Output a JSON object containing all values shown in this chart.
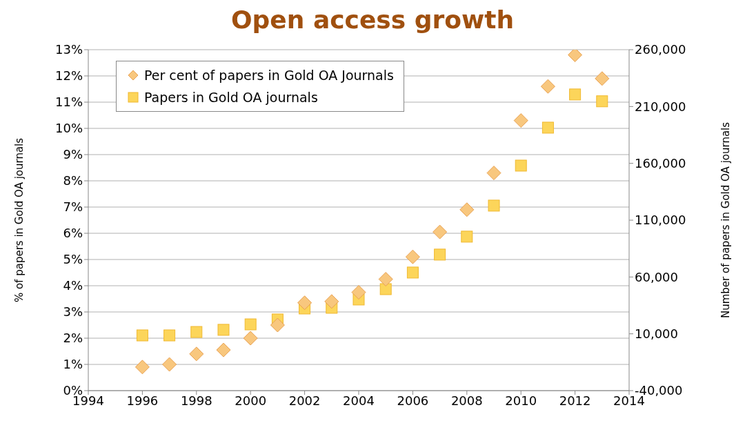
{
  "chart_data": {
    "type": "scatter",
    "title": "Open access growth",
    "ylabel": "% of papers in Gold OA journals",
    "y2label": "Number of papers in Gold OA journals",
    "x": [
      1996,
      1997,
      1998,
      1999,
      2000,
      2001,
      2002,
      2003,
      2004,
      2005,
      2006,
      2007,
      2008,
      2009,
      2010,
      2011,
      2012,
      2013
    ],
    "series": [
      {
        "name": "Per cent of papers in Gold OA Journals",
        "color": "#f8c77e",
        "marker": "diamond",
        "values": [
          0.9,
          1.0,
          1.4,
          1.55,
          2.0,
          2.5,
          3.35,
          3.4,
          3.75,
          4.25,
          5.1,
          6.05,
          6.9,
          8.3,
          10.3,
          11.6,
          12.8,
          11.9
        ]
      },
      {
        "name": "Papers in Gold OA journals",
        "color": "#fcd55a",
        "marker": "square",
        "axis": "y2",
        "values": [
          8600,
          8600,
          11600,
          13500,
          18300,
          22600,
          32300,
          32900,
          40200,
          49300,
          63900,
          79700,
          95500,
          122800,
          158000,
          191400,
          220600,
          214600
        ]
      }
    ],
    "xlim": [
      1994,
      2014
    ],
    "xticks": [
      1994,
      1996,
      1998,
      2000,
      2002,
      2004,
      2006,
      2008,
      2010,
      2012,
      2014
    ],
    "ylim": [
      0,
      13
    ],
    "yticks": [
      {
        "value": 0,
        "label": "0%"
      },
      {
        "value": 1,
        "label": "1%"
      },
      {
        "value": 2,
        "label": "2%"
      },
      {
        "value": 3,
        "label": "3%"
      },
      {
        "value": 4,
        "label": "4%"
      },
      {
        "value": 5,
        "label": "5%"
      },
      {
        "value": 6,
        "label": "6%"
      },
      {
        "value": 7,
        "label": "7%"
      },
      {
        "value": 8,
        "label": "8%"
      },
      {
        "value": 9,
        "label": "9%"
      },
      {
        "value": 10,
        "label": "10%"
      },
      {
        "value": 11,
        "label": "11%"
      },
      {
        "value": 12,
        "label": "12%"
      },
      {
        "value": 13,
        "label": "13%"
      }
    ],
    "y2lim": [
      -40000,
      260000
    ],
    "y2ticks": [
      {
        "value": -40000,
        "label": "-40,000"
      },
      {
        "value": 10000,
        "label": "10,000"
      },
      {
        "value": 60000,
        "label": "60,000"
      },
      {
        "value": 110000,
        "label": "110,000"
      },
      {
        "value": 160000,
        "label": "160,000"
      },
      {
        "value": 210000,
        "label": "210,000"
      },
      {
        "value": 260000,
        "label": "260,000"
      }
    ],
    "grid": "y",
    "legend": "top left"
  }
}
